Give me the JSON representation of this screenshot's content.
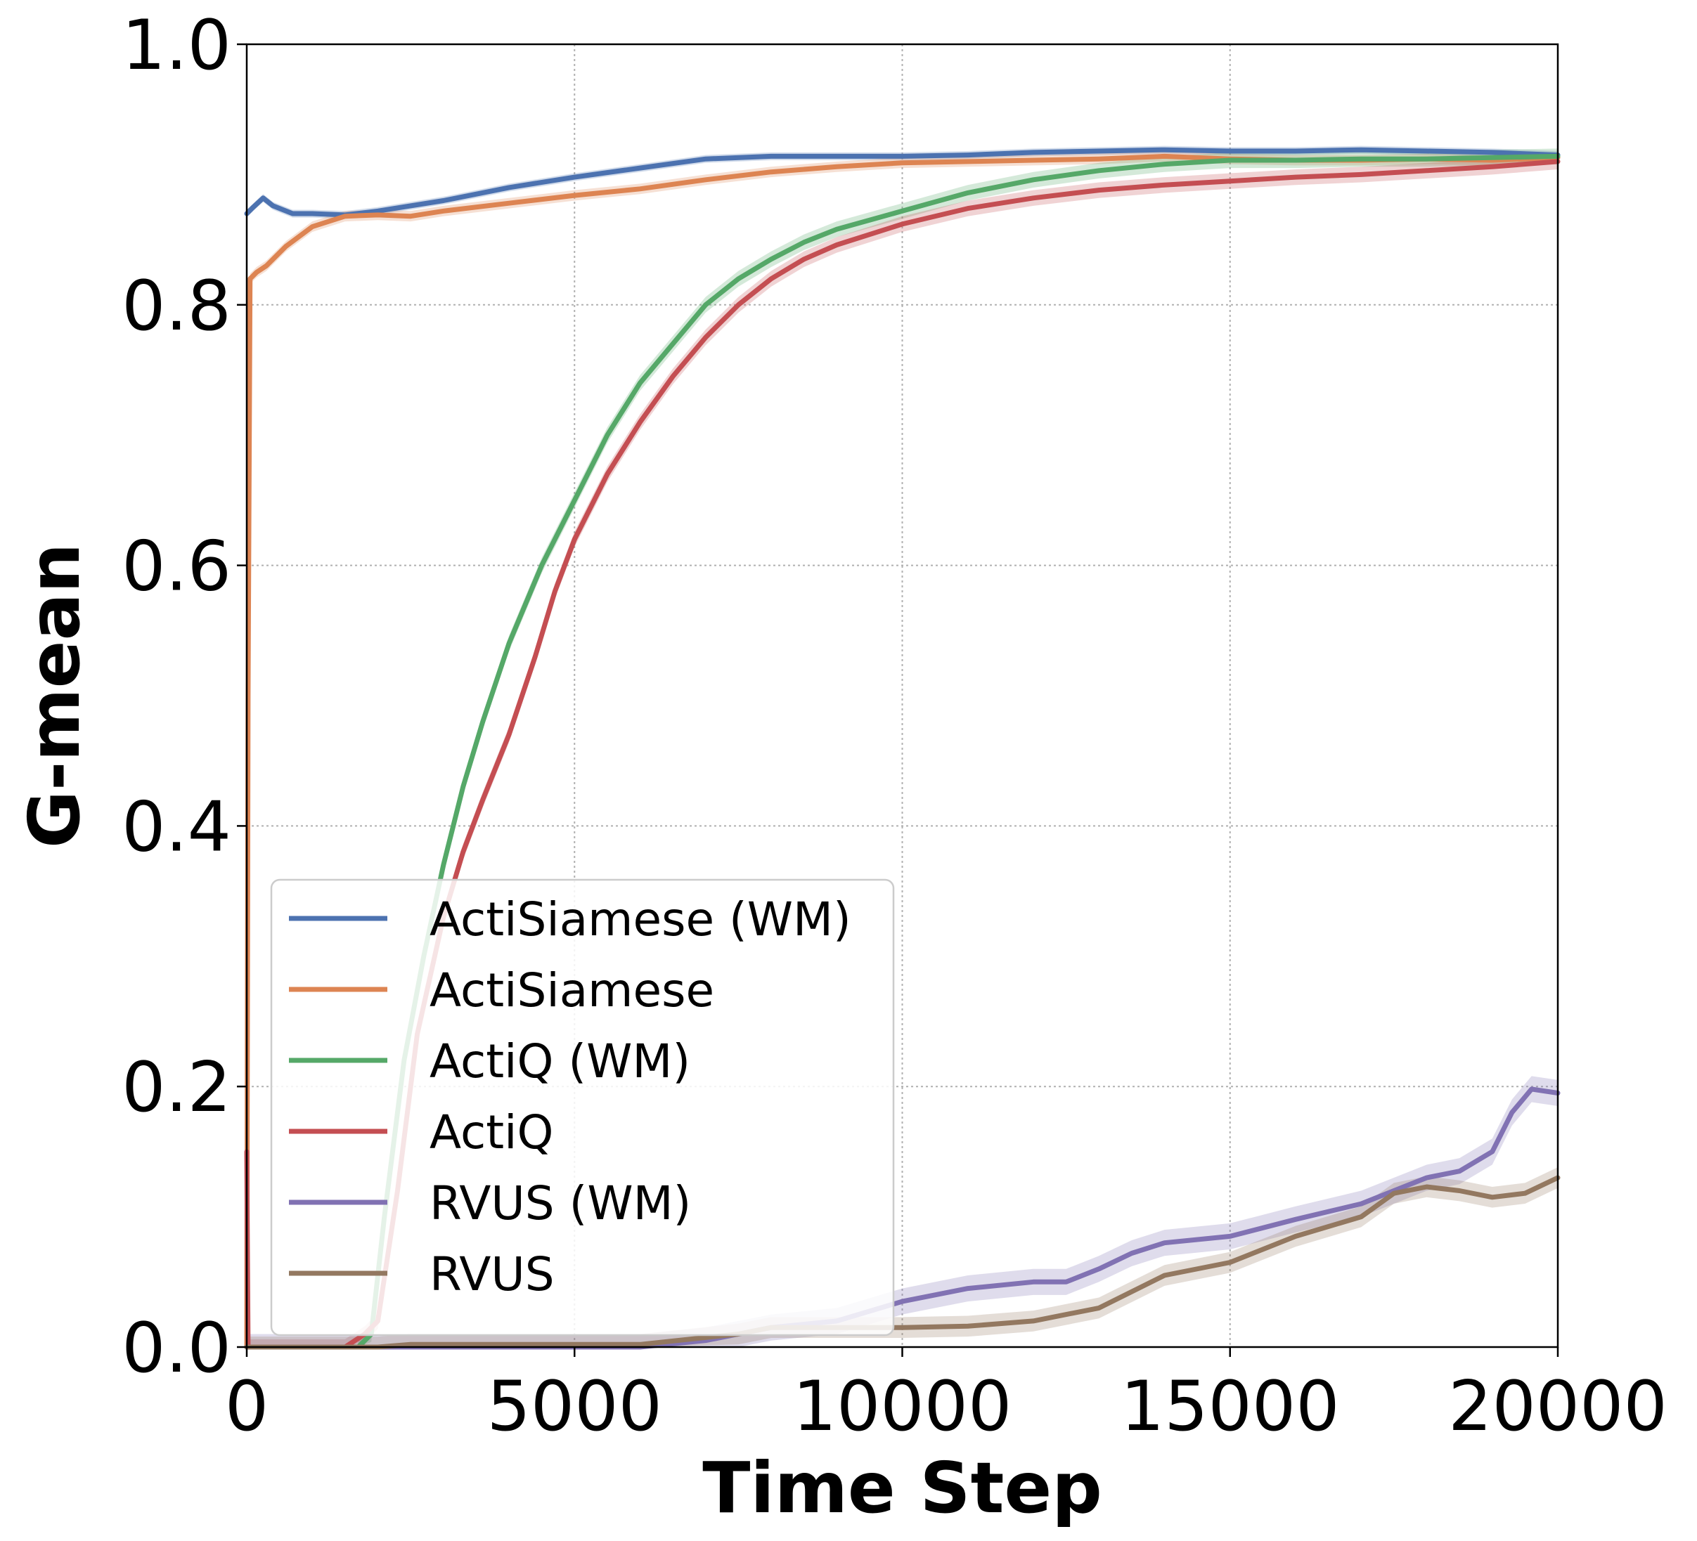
{
  "chart_data": {
    "type": "line",
    "title": "",
    "xlabel": "Time Step",
    "ylabel": "G-mean",
    "xlim": [
      0,
      20000
    ],
    "ylim": [
      0,
      1.0
    ],
    "x_ticks": [
      "0",
      "5000",
      "10000",
      "15000",
      "20000"
    ],
    "y_ticks": [
      "0.0",
      "0.2",
      "0.4",
      "0.6",
      "0.8",
      "1.0"
    ],
    "grid": true,
    "legend_position": "bottom-left",
    "series": [
      {
        "name": "ActiSiamese (WM)",
        "color": "#4c72b0",
        "band": 0.003,
        "points": [
          [
            0,
            0.87
          ],
          [
            100,
            0.875
          ],
          [
            250,
            0.882
          ],
          [
            400,
            0.876
          ],
          [
            700,
            0.87
          ],
          [
            1000,
            0.87
          ],
          [
            1500,
            0.869
          ],
          [
            2000,
            0.872
          ],
          [
            3000,
            0.88
          ],
          [
            4000,
            0.89
          ],
          [
            5000,
            0.898
          ],
          [
            6000,
            0.905
          ],
          [
            7000,
            0.912
          ],
          [
            8000,
            0.914
          ],
          [
            9000,
            0.914
          ],
          [
            10000,
            0.914
          ],
          [
            11000,
            0.915
          ],
          [
            12000,
            0.917
          ],
          [
            13000,
            0.918
          ],
          [
            14000,
            0.919
          ],
          [
            15000,
            0.918
          ],
          [
            16000,
            0.918
          ],
          [
            17000,
            0.919
          ],
          [
            18000,
            0.918
          ],
          [
            19000,
            0.917
          ],
          [
            20000,
            0.915
          ]
        ]
      },
      {
        "name": "ActiSiamese",
        "color": "#dd8452",
        "band": 0.004,
        "points": [
          [
            0,
            0.0
          ],
          [
            20,
            0.5
          ],
          [
            50,
            0.82
          ],
          [
            150,
            0.825
          ],
          [
            300,
            0.83
          ],
          [
            600,
            0.845
          ],
          [
            1000,
            0.86
          ],
          [
            1500,
            0.868
          ],
          [
            2000,
            0.869
          ],
          [
            2500,
            0.868
          ],
          [
            3000,
            0.872
          ],
          [
            4000,
            0.878
          ],
          [
            5000,
            0.884
          ],
          [
            6000,
            0.889
          ],
          [
            7000,
            0.896
          ],
          [
            8000,
            0.902
          ],
          [
            9000,
            0.906
          ],
          [
            10000,
            0.909
          ],
          [
            11000,
            0.91
          ],
          [
            12000,
            0.911
          ],
          [
            13000,
            0.912
          ],
          [
            14000,
            0.914
          ],
          [
            15000,
            0.912
          ],
          [
            16000,
            0.911
          ],
          [
            17000,
            0.911
          ],
          [
            18000,
            0.912
          ],
          [
            19000,
            0.911
          ],
          [
            20000,
            0.913
          ]
        ]
      },
      {
        "name": "ActiQ (WM)",
        "color": "#55a868",
        "band": 0.006,
        "points": [
          [
            1700,
            0.0
          ],
          [
            1900,
            0.01
          ],
          [
            2100,
            0.1
          ],
          [
            2400,
            0.22
          ],
          [
            2700,
            0.3
          ],
          [
            3000,
            0.37
          ],
          [
            3300,
            0.43
          ],
          [
            3600,
            0.48
          ],
          [
            4000,
            0.54
          ],
          [
            4500,
            0.6
          ],
          [
            5000,
            0.65
          ],
          [
            5500,
            0.7
          ],
          [
            6000,
            0.74
          ],
          [
            6500,
            0.77
          ],
          [
            7000,
            0.8
          ],
          [
            7500,
            0.82
          ],
          [
            8000,
            0.835
          ],
          [
            8500,
            0.848
          ],
          [
            9000,
            0.858
          ],
          [
            10000,
            0.872
          ],
          [
            11000,
            0.886
          ],
          [
            12000,
            0.896
          ],
          [
            13000,
            0.903
          ],
          [
            14000,
            0.908
          ],
          [
            15000,
            0.911
          ],
          [
            16000,
            0.911
          ],
          [
            17000,
            0.912
          ],
          [
            18000,
            0.912
          ],
          [
            19000,
            0.913
          ],
          [
            20000,
            0.914
          ]
        ]
      },
      {
        "name": "ActiQ",
        "color": "#c44e52",
        "band": 0.006,
        "points": [
          [
            0,
            0.15
          ],
          [
            20,
            0.0
          ],
          [
            1500,
            0.0
          ],
          [
            1800,
            0.01
          ],
          [
            2000,
            0.02
          ],
          [
            2300,
            0.12
          ],
          [
            2600,
            0.24
          ],
          [
            3000,
            0.33
          ],
          [
            3300,
            0.38
          ],
          [
            3600,
            0.42
          ],
          [
            4000,
            0.47
          ],
          [
            4400,
            0.53
          ],
          [
            4700,
            0.58
          ],
          [
            5000,
            0.62
          ],
          [
            5500,
            0.67
          ],
          [
            6000,
            0.71
          ],
          [
            6500,
            0.745
          ],
          [
            7000,
            0.775
          ],
          [
            7500,
            0.8
          ],
          [
            8000,
            0.82
          ],
          [
            8500,
            0.835
          ],
          [
            9000,
            0.846
          ],
          [
            10000,
            0.862
          ],
          [
            11000,
            0.874
          ],
          [
            12000,
            0.882
          ],
          [
            13000,
            0.888
          ],
          [
            14000,
            0.892
          ],
          [
            15000,
            0.895
          ],
          [
            16000,
            0.898
          ],
          [
            17000,
            0.9
          ],
          [
            18000,
            0.903
          ],
          [
            19000,
            0.906
          ],
          [
            20000,
            0.91
          ]
        ]
      },
      {
        "name": "RVUS (WM)",
        "color": "#8172b3",
        "band": 0.01,
        "points": [
          [
            0,
            0.0
          ],
          [
            6000,
            0.0
          ],
          [
            7000,
            0.005
          ],
          [
            7500,
            0.01
          ],
          [
            8000,
            0.015
          ],
          [
            9000,
            0.02
          ],
          [
            10000,
            0.035
          ],
          [
            11000,
            0.045
          ],
          [
            12000,
            0.05
          ],
          [
            12500,
            0.05
          ],
          [
            13000,
            0.06
          ],
          [
            13500,
            0.072
          ],
          [
            14000,
            0.08
          ],
          [
            15000,
            0.085
          ],
          [
            16000,
            0.098
          ],
          [
            17000,
            0.11
          ],
          [
            17500,
            0.12
          ],
          [
            18000,
            0.13
          ],
          [
            18500,
            0.135
          ],
          [
            19000,
            0.15
          ],
          [
            19300,
            0.18
          ],
          [
            19600,
            0.198
          ],
          [
            20000,
            0.195
          ]
        ]
      },
      {
        "name": "RVUS",
        "color": "#937860",
        "band": 0.008,
        "points": [
          [
            0,
            0.0
          ],
          [
            2000,
            0.0
          ],
          [
            2500,
            0.002
          ],
          [
            4000,
            0.002
          ],
          [
            6000,
            0.002
          ],
          [
            7500,
            0.01
          ],
          [
            8000,
            0.015
          ],
          [
            9000,
            0.015
          ],
          [
            10000,
            0.015
          ],
          [
            11000,
            0.016
          ],
          [
            12000,
            0.02
          ],
          [
            13000,
            0.03
          ],
          [
            14000,
            0.055
          ],
          [
            15000,
            0.065
          ],
          [
            16000,
            0.085
          ],
          [
            17000,
            0.1
          ],
          [
            17500,
            0.118
          ],
          [
            18000,
            0.123
          ],
          [
            18500,
            0.12
          ],
          [
            19000,
            0.115
          ],
          [
            19500,
            0.118
          ],
          [
            20000,
            0.13
          ]
        ]
      }
    ]
  }
}
